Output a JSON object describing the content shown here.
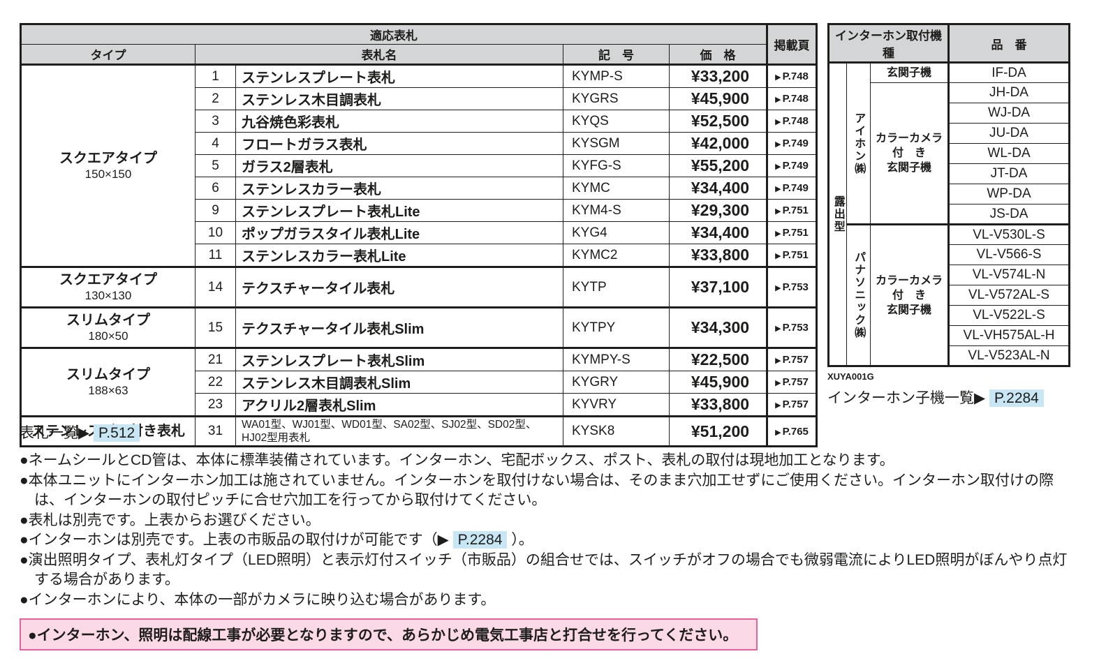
{
  "colors": {
    "header_bg": "#d4d5d6",
    "border": "#1d1d1b",
    "text": "#1d1d1b",
    "highlight": "#c9e6f4",
    "pink_bg": "#fcd9e7",
    "pink_border": "#e9609f"
  },
  "icons": {
    "page_arrow": "▶"
  },
  "main_table": {
    "title": "適応表札",
    "col_type": "タイプ",
    "col_name": "表札名",
    "col_code": "記　号",
    "col_price": "価　格",
    "col_page": "掲載頁",
    "groups": [
      {
        "type": "スクエアタイプ",
        "size": "150×150",
        "rows": [
          {
            "no": "1",
            "name": "ステンレスプレート表札",
            "code": "KYMP-S",
            "price": "¥33,200",
            "page": "P.748"
          },
          {
            "no": "2",
            "name": "ステンレス木目調表札",
            "code": "KYGRS",
            "price": "¥45,900",
            "page": "P.748"
          },
          {
            "no": "3",
            "name": "九谷焼色彩表札",
            "code": "KYQS",
            "price": "¥52,500",
            "page": "P.748"
          },
          {
            "no": "4",
            "name": "フロートガラス表札",
            "code": "KYSGM",
            "price": "¥42,000",
            "page": "P.749"
          },
          {
            "no": "5",
            "name": "ガラス2層表札",
            "code": "KYFG-S",
            "price": "¥55,200",
            "page": "P.749"
          },
          {
            "no": "6",
            "name": "ステンレスカラー表札",
            "code": "KYMC",
            "price": "¥34,400",
            "page": "P.749"
          },
          {
            "no": "9",
            "name": "ステンレスプレート表札Lite",
            "code": "KYM4-S",
            "price": "¥29,300",
            "page": "P.751"
          },
          {
            "no": "10",
            "name": "ポップガラスタイル表札Lite",
            "code": "KYG4",
            "price": "¥34,400",
            "page": "P.751"
          },
          {
            "no": "11",
            "name": "ステンレスカラー表札Lite",
            "code": "KYMC2",
            "price": "¥33,800",
            "page": "P.751"
          }
        ]
      },
      {
        "type": "スクエアタイプ",
        "size": "130×130",
        "rows": [
          {
            "no": "14",
            "name": "テクスチャータイル表札",
            "code": "KYTP",
            "price": "¥37,100",
            "page": "P.753"
          }
        ]
      },
      {
        "type": "スリムタイプ",
        "size": "180×50",
        "rows": [
          {
            "no": "15",
            "name": "テクスチャータイル表札Slim",
            "code": "KYTPY",
            "price": "¥34,300",
            "page": "P.753"
          }
        ]
      },
      {
        "type": "スリムタイプ",
        "size": "188×63",
        "rows": [
          {
            "no": "21",
            "name": "ステンレスプレート表札Slim",
            "code": "KYMPY-S",
            "price": "¥22,500",
            "page": "P.757"
          },
          {
            "no": "22",
            "name": "ステンレス木目調表札Slim",
            "code": "KYGRY",
            "price": "¥45,900",
            "page": "P.757"
          },
          {
            "no": "23",
            "name": "アクリル2層表札Slim",
            "code": "KYVRY",
            "price": "¥33,800",
            "page": "P.757"
          }
        ]
      },
      {
        "type": "ステンレスバー付き表札",
        "size": "",
        "rows": [
          {
            "no": "31",
            "name": "WA01型、WJ01型、WD01型、SA02型、SJ02型、SD02型、HJ02型用表札",
            "code": "KYSK8",
            "price": "¥51,200",
            "page": "P.765",
            "small": true
          }
        ]
      }
    ]
  },
  "intercom_table": {
    "title": "インターホン取付機種",
    "col_part": "品　番",
    "mount_type": "露出型",
    "sections": [
      {
        "brand": "アイホン㈱",
        "subsections": [
          {
            "lines": [
              "玄関子機"
            ],
            "parts": [
              "IF-DA"
            ]
          },
          {
            "lines": [
              "カラーカメラ",
              "付　き",
              "玄関子機"
            ],
            "parts": [
              "JH-DA",
              "WJ-DA",
              "JU-DA",
              "WL-DA",
              "JT-DA",
              "WP-DA",
              "JS-DA"
            ]
          }
        ]
      },
      {
        "brand": "パナソニック㈱",
        "subsections": [
          {
            "lines": [
              "カラーカメラ",
              "付　き",
              "玄関子機"
            ],
            "parts": [
              "VL-V530L-S",
              "VL-V566-S",
              "VL-V574L-N",
              "VL-V572AL-S",
              "VL-V522L-S",
              "VL-VH575AL-H",
              "VL-V523AL-N"
            ]
          }
        ]
      }
    ],
    "code": "XUYA001G",
    "link_label": "インターホン子機一覧",
    "link_page": "P.2284"
  },
  "nameplate_link": {
    "label": "表札一覧",
    "page": "P.512"
  },
  "notes": [
    {
      "segments": [
        {
          "t": "●ネームシールとCD管は、本体に標準装備されています。インターホン、宅配ボックス、ポスト、表札の取付は現地加工となります。"
        }
      ]
    },
    {
      "segments": [
        {
          "t": "●本体ユニットにインターホン加工は施されていません。インターホンを取付けない場合は、そのまま穴加工せずにご使用ください。インターホン取付けの際は、インターホンの取付ピッチに合せ穴加工を行ってから取付けてください。"
        }
      ]
    },
    {
      "segments": [
        {
          "t": "●表札は別売です。上表からお選びください。"
        }
      ]
    },
    {
      "segments": [
        {
          "t": "●インターホンは別売です。上表の市販品の取付けが可能です（▶ "
        },
        {
          "t": "P.2284",
          "hl": true
        },
        {
          "t": " ）。"
        }
      ]
    },
    {
      "segments": [
        {
          "t": "●演出照明タイプ、表札灯タイプ（LED照明）と表示灯付スイッチ（市販品）の組合せでは、スイッチがオフの場合でも微弱電流によりLED照明がぼんやり点灯する場合があります。"
        }
      ]
    },
    {
      "segments": [
        {
          "t": "●インターホンにより、本体の一部がカメラに映り込む場合があります。"
        }
      ]
    }
  ],
  "warning": "●インターホン、照明は配線工事が必要となりますので、あらかじめ電気工事店と打合せを行ってください。"
}
